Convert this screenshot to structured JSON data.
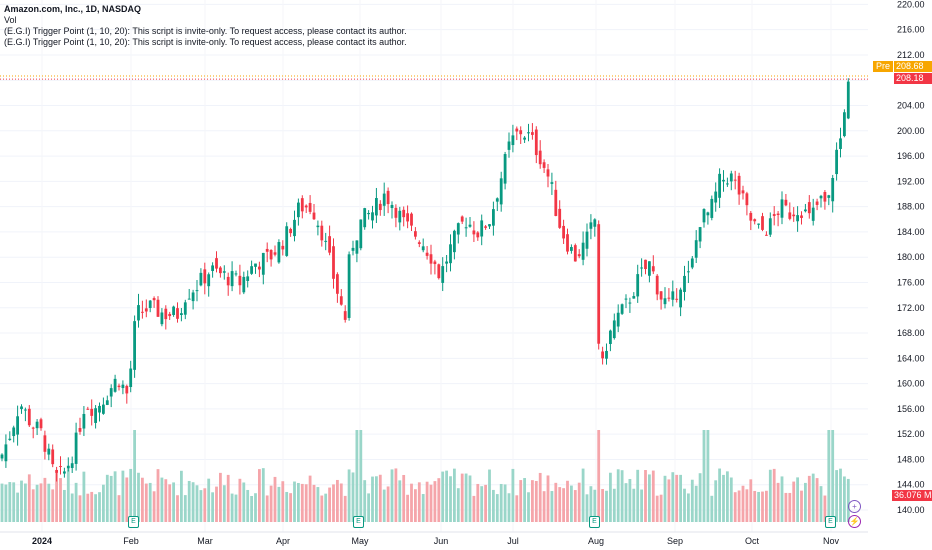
{
  "legend": {
    "symbol_line": "Amazon.com, Inc., 1D, NASDAQ",
    "vol_label": "Vol",
    "indicator_1": "(E.G.I) Trigger Point  (1, 10, 20): This script is invite-only. To request access, please contact its author.",
    "indicator_2": "(E.G.I) Trigger Point  (1, 10, 20): This script is invite-only. To request access, please contact its author."
  },
  "tags": {
    "pre_label": "Pre",
    "pre_value": "208.68",
    "last_price": "208.18",
    "volume": "36.076 M"
  },
  "colors": {
    "up": "#089981",
    "down": "#f23645",
    "vol_up": "#9ad6c9",
    "vol_down": "#f5a5aa",
    "pre": "#f7a600"
  },
  "events": {
    "earnings_icon": "E"
  },
  "chart_data": {
    "type": "candlestick",
    "title": "Amazon.com, Inc., 1D, NASDAQ",
    "x_ticks": [
      "2024",
      "Feb",
      "Mar",
      "Apr",
      "May",
      "Jun",
      "Jul",
      "Aug",
      "Sep",
      "Oct",
      "Nov"
    ],
    "y_ticks": [
      140,
      144,
      148,
      152,
      156,
      160,
      164,
      168,
      172,
      176,
      180,
      184,
      188,
      192,
      196,
      200,
      204,
      208,
      212,
      216,
      220
    ],
    "ylim": [
      138.5,
      221
    ],
    "last_price": 208.18,
    "premarket_price": 208.68,
    "last_volume": "36.076 M",
    "earnings_months": [
      "Feb",
      "May",
      "Aug",
      "Nov"
    ],
    "monthly_closes": [
      {
        "month": "Jan",
        "close": 155.2
      },
      {
        "month": "Feb",
        "close": 176.8
      },
      {
        "month": "Mar",
        "close": 180.4
      },
      {
        "month": "Apr",
        "close": 175.0
      },
      {
        "month": "May",
        "close": 176.4
      },
      {
        "month": "Jun",
        "close": 193.2
      },
      {
        "month": "Jul",
        "close": 186.9
      },
      {
        "month": "Aug",
        "close": 178.5
      },
      {
        "month": "Sep",
        "close": 186.3
      },
      {
        "month": "Oct",
        "close": 186.4
      },
      {
        "month": "Nov",
        "close": 208.18
      }
    ]
  }
}
